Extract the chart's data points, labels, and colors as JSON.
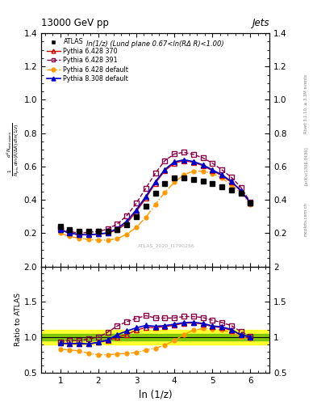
{
  "title": "13000 GeV pp",
  "title_right": "Jets",
  "annotation": "ln(1/z) (Lund plane 0.67<ln(RΔ R)<1.00)",
  "watermark": "ATLAS_2020_I1790256",
  "xlabel": "ln (1/z)",
  "ylabel_ratio": "Ratio to ATLAS",
  "rivet_label": "Rivet 3.1.10, ≥ 3.3M events",
  "arxiv_label": "[arXiv:1306.3436]",
  "mcplots_label": "mcplots.cern.ch",
  "xlim": [
    0.5,
    6.5
  ],
  "ylim_main": [
    0.0,
    1.4
  ],
  "ylim_ratio": [
    0.5,
    2.0
  ],
  "yticks_main": [
    0.2,
    0.4,
    0.6,
    0.8,
    1.0,
    1.2,
    1.4
  ],
  "yticks_ratio": [
    0.5,
    1.0,
    1.5,
    2.0
  ],
  "xticks": [
    1,
    2,
    3,
    4,
    5,
    6
  ],
  "x_atlas": [
    1.0,
    1.25,
    1.5,
    1.75,
    2.0,
    2.25,
    2.5,
    2.75,
    3.0,
    3.25,
    3.5,
    3.75,
    4.0,
    4.25,
    4.5,
    4.75,
    5.0,
    5.25,
    5.5,
    5.75,
    6.0
  ],
  "y_atlas": [
    0.24,
    0.22,
    0.21,
    0.21,
    0.21,
    0.21,
    0.22,
    0.25,
    0.3,
    0.36,
    0.44,
    0.5,
    0.53,
    0.53,
    0.52,
    0.51,
    0.5,
    0.48,
    0.46,
    0.44,
    0.38
  ],
  "x_py6_370": [
    1.0,
    1.25,
    1.5,
    1.75,
    2.0,
    2.25,
    2.5,
    2.75,
    3.0,
    3.25,
    3.5,
    3.75,
    4.0,
    4.25,
    4.5,
    4.75,
    5.0,
    5.25,
    5.5,
    5.75,
    6.0
  ],
  "y_py6_370": [
    0.22,
    0.2,
    0.19,
    0.19,
    0.195,
    0.2,
    0.22,
    0.26,
    0.33,
    0.41,
    0.5,
    0.575,
    0.62,
    0.635,
    0.625,
    0.605,
    0.575,
    0.545,
    0.505,
    0.455,
    0.38
  ],
  "x_py6_391": [
    1.0,
    1.25,
    1.5,
    1.75,
    2.0,
    2.25,
    2.5,
    2.75,
    3.0,
    3.25,
    3.5,
    3.75,
    4.0,
    4.25,
    4.5,
    4.75,
    5.0,
    5.25,
    5.5,
    5.75,
    6.0
  ],
  "y_py6_391": [
    0.225,
    0.21,
    0.2,
    0.205,
    0.21,
    0.225,
    0.255,
    0.305,
    0.38,
    0.47,
    0.56,
    0.635,
    0.675,
    0.685,
    0.672,
    0.652,
    0.62,
    0.58,
    0.535,
    0.475,
    0.385
  ],
  "x_py6_def": [
    1.0,
    1.25,
    1.5,
    1.75,
    2.0,
    2.25,
    2.5,
    2.75,
    3.0,
    3.25,
    3.5,
    3.75,
    4.0,
    4.25,
    4.5,
    4.75,
    5.0,
    5.25,
    5.5,
    5.75,
    6.0
  ],
  "y_py6_def": [
    0.2,
    0.18,
    0.17,
    0.162,
    0.158,
    0.158,
    0.168,
    0.193,
    0.235,
    0.295,
    0.372,
    0.445,
    0.505,
    0.55,
    0.572,
    0.572,
    0.558,
    0.53,
    0.49,
    0.442,
    0.37
  ],
  "x_py8_def": [
    1.0,
    1.25,
    1.5,
    1.75,
    2.0,
    2.25,
    2.5,
    2.75,
    3.0,
    3.25,
    3.5,
    3.75,
    4.0,
    4.25,
    4.5,
    4.75,
    5.0,
    5.25,
    5.5,
    5.75,
    6.0
  ],
  "y_py8_def": [
    0.22,
    0.2,
    0.192,
    0.19,
    0.195,
    0.202,
    0.228,
    0.272,
    0.34,
    0.42,
    0.508,
    0.582,
    0.628,
    0.64,
    0.63,
    0.61,
    0.58,
    0.55,
    0.51,
    0.455,
    0.382
  ],
  "color_py6_370": "#cc0000",
  "color_py6_391": "#880044",
  "color_py6_def": "#ff9900",
  "color_py8_def": "#0000cc",
  "color_atlas": "#000000",
  "band_green_inner": 0.05,
  "band_yellow_outer": 0.1,
  "band_green_color": "#66bb00",
  "band_yellow_color": "#ffff00"
}
